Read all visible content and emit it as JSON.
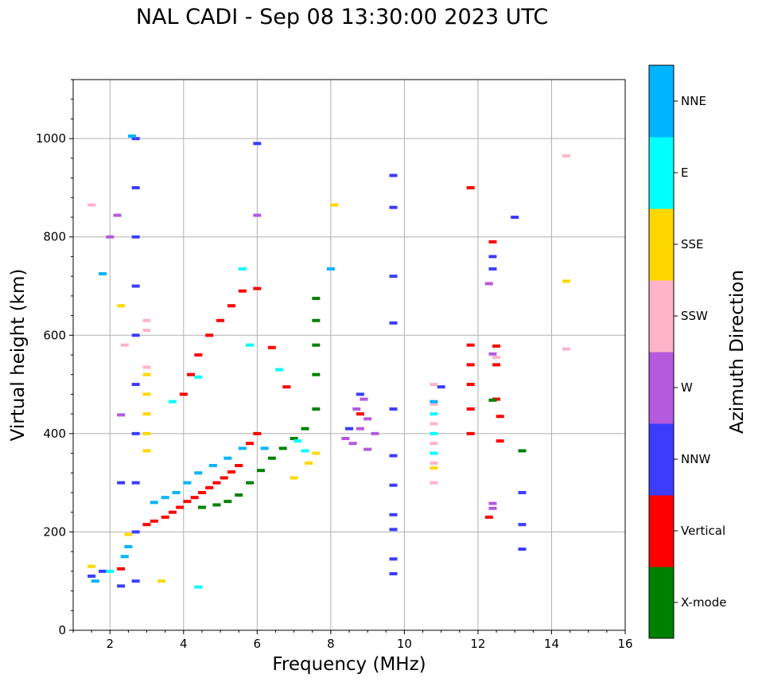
{
  "chart_data": {
    "type": "scatter",
    "title": "NAL CADI - Sep 08 13:30:00 2023 UTC",
    "xlabel": "Frequency (MHz)",
    "ylabel": "Virtual height (km)",
    "xlim": [
      1,
      16
    ],
    "ylim": [
      0,
      1120
    ],
    "xticks": [
      "2",
      "4",
      "6",
      "8",
      "10",
      "12",
      "14",
      "16"
    ],
    "yticks": [
      "0",
      "200",
      "400",
      "600",
      "800",
      "1000"
    ],
    "grid": true,
    "colorbar": {
      "label": "Azimuth Direction",
      "categories": [
        {
          "name": "X-mode",
          "color": "#008000"
        },
        {
          "name": "Vertical",
          "color": "#ff0000"
        },
        {
          "name": "NNW",
          "color": "#3c3cff"
        },
        {
          "name": "W",
          "color": "#b45adc"
        },
        {
          "name": "SSW",
          "color": "#ffb4c8"
        },
        {
          "name": "SSE",
          "color": "#ffd700"
        },
        {
          "name": "E",
          "color": "#00ffff"
        },
        {
          "name": "NNE",
          "color": "#00b4ff"
        }
      ]
    },
    "series": [
      {
        "name": "Vertical",
        "points": [
          [
            2.3,
            125
          ],
          [
            3.0,
            215
          ],
          [
            3.2,
            222
          ],
          [
            3.5,
            230
          ],
          [
            3.7,
            240
          ],
          [
            3.9,
            250
          ],
          [
            4.1,
            262
          ],
          [
            4.3,
            270
          ],
          [
            4.5,
            280
          ],
          [
            4.7,
            290
          ],
          [
            4.9,
            300
          ],
          [
            5.1,
            310
          ],
          [
            5.3,
            322
          ],
          [
            5.5,
            335
          ],
          [
            5.8,
            380
          ],
          [
            6.0,
            400
          ],
          [
            4.0,
            480
          ],
          [
            4.2,
            520
          ],
          [
            4.4,
            560
          ],
          [
            4.7,
            600
          ],
          [
            5.0,
            630
          ],
          [
            5.3,
            660
          ],
          [
            5.6,
            690
          ],
          [
            6.0,
            695
          ],
          [
            6.4,
            575
          ],
          [
            6.8,
            495
          ],
          [
            8.8,
            440
          ],
          [
            11.8,
            580
          ],
          [
            11.8,
            540
          ],
          [
            11.8,
            500
          ],
          [
            11.8,
            450
          ],
          [
            11.8,
            400
          ],
          [
            12.5,
            540
          ],
          [
            12.5,
            470
          ],
          [
            12.6,
            435
          ],
          [
            12.6,
            385
          ],
          [
            12.3,
            230
          ],
          [
            11.8,
            900
          ],
          [
            12.4,
            790
          ],
          [
            12.5,
            578
          ]
        ]
      },
      {
        "name": "X-mode",
        "points": [
          [
            4.5,
            250
          ],
          [
            4.9,
            255
          ],
          [
            5.2,
            262
          ],
          [
            5.5,
            275
          ],
          [
            5.8,
            300
          ],
          [
            6.1,
            325
          ],
          [
            6.4,
            350
          ],
          [
            6.7,
            370
          ],
          [
            7.0,
            390
          ],
          [
            7.3,
            410
          ],
          [
            7.6,
            450
          ],
          [
            7.6,
            520
          ],
          [
            7.6,
            580
          ],
          [
            7.6,
            630
          ],
          [
            7.6,
            675
          ],
          [
            12.4,
            468
          ],
          [
            13.2,
            365
          ]
        ]
      },
      {
        "name": "NNW",
        "points": [
          [
            1.5,
            110
          ],
          [
            1.8,
            120
          ],
          [
            2.7,
            1000
          ],
          [
            2.7,
            900
          ],
          [
            2.7,
            800
          ],
          [
            2.7,
            700
          ],
          [
            2.7,
            600
          ],
          [
            2.7,
            500
          ],
          [
            2.7,
            400
          ],
          [
            2.7,
            300
          ],
          [
            2.7,
            200
          ],
          [
            2.7,
            100
          ],
          [
            2.3,
            300
          ],
          [
            2.3,
            90
          ],
          [
            9.7,
            925
          ],
          [
            9.7,
            860
          ],
          [
            9.7,
            720
          ],
          [
            9.7,
            625
          ],
          [
            9.7,
            450
          ],
          [
            9.7,
            355
          ],
          [
            9.7,
            295
          ],
          [
            9.7,
            235
          ],
          [
            9.7,
            205
          ],
          [
            9.7,
            145
          ],
          [
            9.7,
            115
          ],
          [
            8.5,
            410
          ],
          [
            8.8,
            480
          ],
          [
            12.4,
            760
          ],
          [
            12.4,
            735
          ],
          [
            13.0,
            840
          ],
          [
            13.2,
            280
          ],
          [
            13.2,
            215
          ],
          [
            13.2,
            165
          ],
          [
            6.0,
            990
          ],
          [
            11.0,
            495
          ]
        ]
      },
      {
        "name": "W",
        "points": [
          [
            2.3,
            438
          ],
          [
            2.2,
            844
          ],
          [
            6.0,
            844
          ],
          [
            8.4,
            390
          ],
          [
            8.6,
            380
          ],
          [
            8.8,
            410
          ],
          [
            9.0,
            430
          ],
          [
            9.2,
            400
          ],
          [
            8.7,
            450
          ],
          [
            8.9,
            470
          ],
          [
            9.0,
            368
          ],
          [
            12.4,
            562
          ],
          [
            12.4,
            258
          ],
          [
            12.4,
            248
          ],
          [
            12.3,
            705
          ],
          [
            2.0,
            800
          ]
        ]
      },
      {
        "name": "SSW",
        "points": [
          [
            3.0,
            630
          ],
          [
            3.0,
            610
          ],
          [
            3.0,
            535
          ],
          [
            10.8,
            500
          ],
          [
            10.8,
            460
          ],
          [
            10.8,
            420
          ],
          [
            10.8,
            380
          ],
          [
            10.8,
            340
          ],
          [
            10.8,
            300
          ],
          [
            12.5,
            555
          ],
          [
            14.4,
            965
          ],
          [
            14.4,
            572
          ],
          [
            2.4,
            580
          ],
          [
            1.5,
            865
          ]
        ]
      },
      {
        "name": "SSE",
        "points": [
          [
            3.0,
            520
          ],
          [
            3.0,
            480
          ],
          [
            3.0,
            440
          ],
          [
            3.0,
            400
          ],
          [
            3.0,
            365
          ],
          [
            1.5,
            130
          ],
          [
            2.5,
            195
          ],
          [
            2.3,
            660
          ],
          [
            7.0,
            310
          ],
          [
            7.4,
            340
          ],
          [
            7.6,
            360
          ],
          [
            8.1,
            865
          ],
          [
            14.4,
            710
          ],
          [
            3.4,
            100
          ],
          [
            10.8,
            330
          ]
        ]
      },
      {
        "name": "E",
        "points": [
          [
            2.0,
            120
          ],
          [
            4.4,
            88
          ],
          [
            3.7,
            465
          ],
          [
            4.4,
            515
          ],
          [
            5.8,
            580
          ],
          [
            6.6,
            530
          ],
          [
            7.1,
            385
          ],
          [
            7.3,
            365
          ],
          [
            10.8,
            440
          ],
          [
            10.8,
            400
          ],
          [
            10.8,
            360
          ],
          [
            5.6,
            735
          ]
        ]
      },
      {
        "name": "NNE",
        "points": [
          [
            1.6,
            100
          ],
          [
            2.4,
            150
          ],
          [
            2.5,
            170
          ],
          [
            3.2,
            260
          ],
          [
            3.5,
            270
          ],
          [
            3.8,
            280
          ],
          [
            4.1,
            300
          ],
          [
            4.4,
            320
          ],
          [
            4.8,
            335
          ],
          [
            5.2,
            350
          ],
          [
            5.6,
            370
          ],
          [
            6.2,
            370
          ],
          [
            1.8,
            725
          ],
          [
            2.6,
            1005
          ],
          [
            10.8,
            465
          ],
          [
            8.0,
            735
          ]
        ]
      }
    ]
  }
}
